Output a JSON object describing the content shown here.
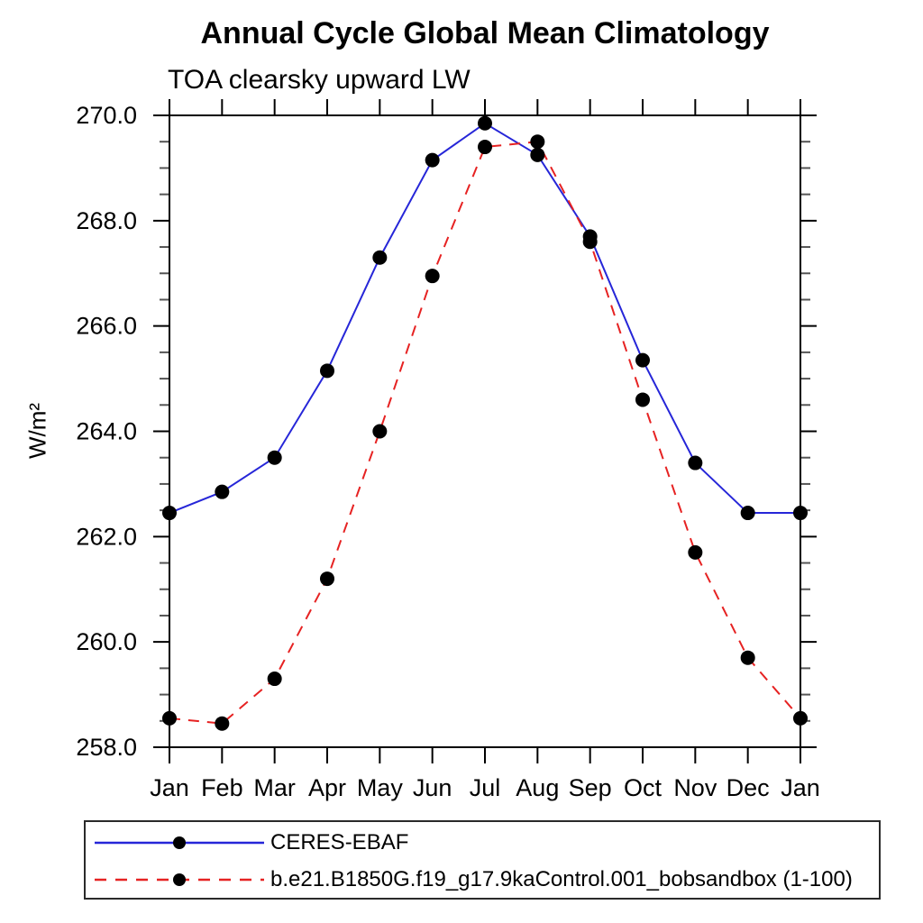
{
  "title": "Annual Cycle Global Mean Climatology",
  "subtitle": "TOA clearsky upward LW",
  "ylabel": "W/m²",
  "chart_data": {
    "type": "line",
    "title": "Annual Cycle Global Mean Climatology",
    "subtitle": "TOA clearsky upward LW",
    "ylabel": "W/m²",
    "xlabel": "",
    "categories": [
      "Jan",
      "Feb",
      "Mar",
      "Apr",
      "May",
      "Jun",
      "Jul",
      "Aug",
      "Sep",
      "Oct",
      "Nov",
      "Dec",
      "Jan"
    ],
    "series": [
      {
        "name": "CERES-EBAF",
        "color": "#2626d8",
        "line_style": "solid",
        "marker": "filled-circle",
        "marker_color": "#000000",
        "values": [
          262.45,
          262.85,
          263.5,
          265.15,
          267.3,
          269.15,
          269.85,
          269.25,
          267.7,
          265.35,
          263.4,
          262.45,
          262.45
        ]
      },
      {
        "name": "b.e21.B1850G.f19_g17.9kaControl.001_bobsandbox (1-100)",
        "color": "#e62222",
        "line_style": "dashed",
        "marker": "filled-circle",
        "marker_color": "#000000",
        "values": [
          258.55,
          258.45,
          259.3,
          261.2,
          264.0,
          266.95,
          269.4,
          269.5,
          267.6,
          264.6,
          261.7,
          259.7,
          258.55
        ]
      }
    ],
    "ylim": [
      258.0,
      270.0
    ],
    "y_major_step": 2.0,
    "y_minor_step": 0.5,
    "y_tick_labels": [
      "258.0",
      "260.0",
      "262.0",
      "264.0",
      "266.0",
      "268.0",
      "270.0"
    ],
    "grid": false,
    "frame": "box-with-outward-ticks",
    "legend_position": "bottom-left"
  }
}
